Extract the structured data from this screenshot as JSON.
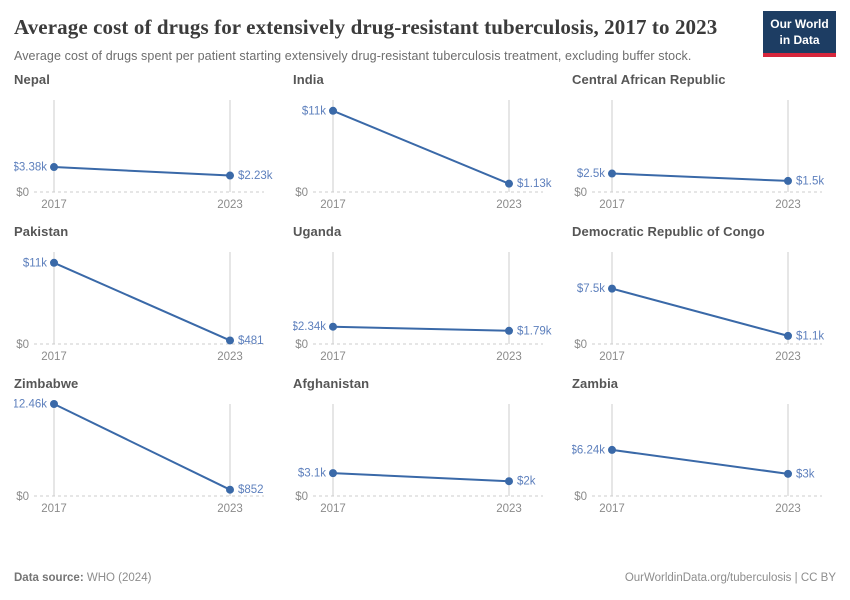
{
  "header": {
    "title": "Average cost of drugs for extensively drug-resistant tuberculosis, 2017 to 2023",
    "subtitle": "Average cost of drugs spent per patient starting extensively drug-resistant tuberculosis treatment, excluding buffer stock.",
    "logo": {
      "line1": "Our World",
      "line2": "in Data",
      "bg_color": "#1d3d63",
      "accent_color": "#d7263c"
    }
  },
  "chart_data": {
    "type": "line",
    "faceted": true,
    "title": "Average cost of drugs for extensively drug-resistant tuberculosis, 2017 to 2023",
    "x": [
      2017,
      2023
    ],
    "x_tick_labels": [
      "2017",
      "2023"
    ],
    "ylim": [
      0,
      12460
    ],
    "shared_y_scale": true,
    "zero_label": "$0",
    "grid": "vertical-year-lines-and-dashed-zero-baseline",
    "legend": "none",
    "line_color": "#3a69a8",
    "value_label_color": "#5e80bd",
    "tick_label_color": "#8b8b8b",
    "gridline_color": "#cccccc",
    "facets": [
      {
        "country": "Nepal",
        "values": [
          3380,
          2230
        ],
        "labels": [
          "$3.38k",
          "$2.23k"
        ]
      },
      {
        "country": "India",
        "values": [
          11000,
          1130
        ],
        "labels": [
          "$11k",
          "$1.13k"
        ]
      },
      {
        "country": "Central African Republic",
        "values": [
          2500,
          1500
        ],
        "labels": [
          "$2.5k",
          "$1.5k"
        ]
      },
      {
        "country": "Pakistan",
        "values": [
          11000,
          481
        ],
        "labels": [
          "$11k",
          "$481"
        ]
      },
      {
        "country": "Uganda",
        "values": [
          2340,
          1790
        ],
        "labels": [
          "$2.34k",
          "$1.79k"
        ]
      },
      {
        "country": "Democratic Republic of Congo",
        "values": [
          7500,
          1100
        ],
        "labels": [
          "$7.5k",
          "$1.1k"
        ]
      },
      {
        "country": "Zimbabwe",
        "values": [
          12460,
          852
        ],
        "labels": [
          "$12.46k",
          "$852"
        ]
      },
      {
        "country": "Afghanistan",
        "values": [
          3100,
          2000
        ],
        "labels": [
          "$3.1k",
          "$2k"
        ]
      },
      {
        "country": "Zambia",
        "values": [
          6240,
          3000
        ],
        "labels": [
          "$6.24k",
          "$3k"
        ]
      }
    ]
  },
  "footer": {
    "source_label": "Data source:",
    "source_value": "WHO (2024)",
    "link": "OurWorldinData.org/tuberculosis",
    "separator": "|",
    "license": "CC BY"
  }
}
